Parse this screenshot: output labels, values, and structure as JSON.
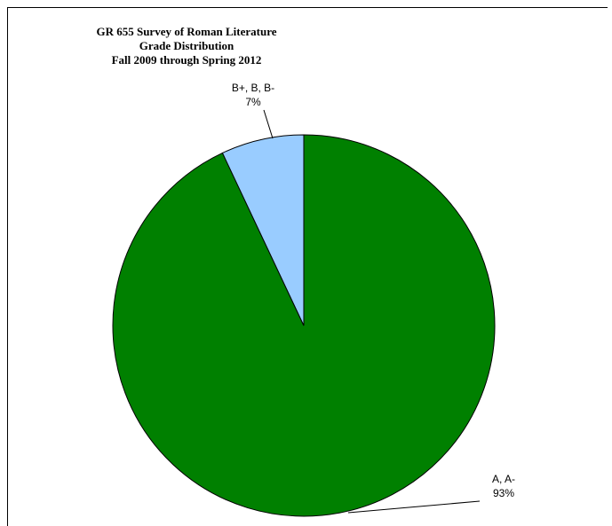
{
  "chart_data": {
    "type": "pie",
    "title_lines": [
      "GR 655 Survey of Roman Literature",
      "Grade Distribution",
      "Fall 2009 through Spring 2012"
    ],
    "categories": [
      "A, A-",
      "B+, B, B-"
    ],
    "values": [
      93,
      7
    ],
    "value_labels": [
      "93%",
      "7%"
    ],
    "colors": [
      "#008000",
      "#99ccff"
    ],
    "edge_color": "#000000",
    "start_angle_deg": 0,
    "direction": "clockwise",
    "legend": "none"
  }
}
